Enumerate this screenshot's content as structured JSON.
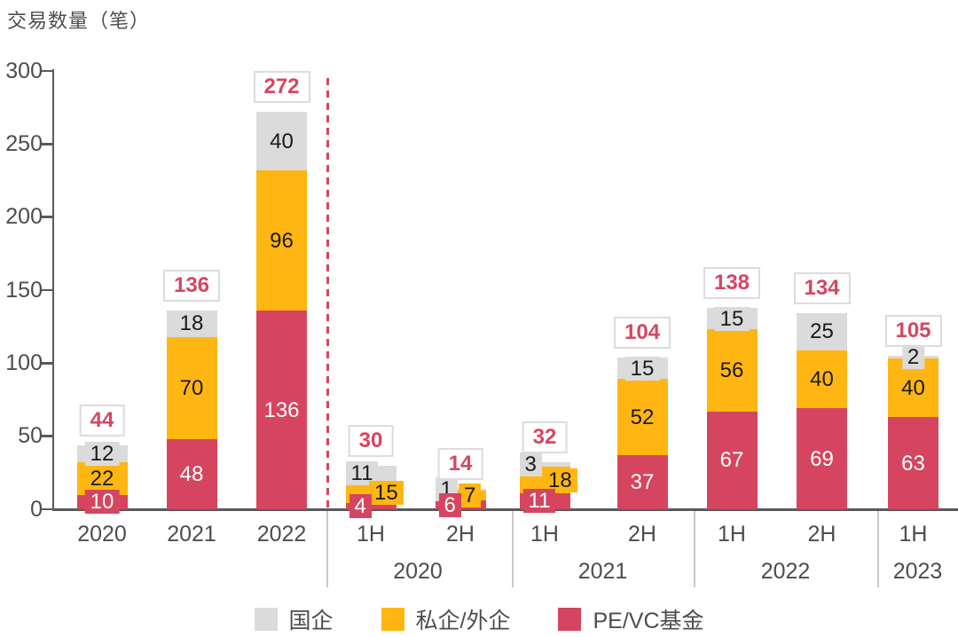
{
  "chart_data": {
    "type": "bar",
    "stacked": true,
    "title": "交易数量（笔）",
    "ylim": [
      0,
      300
    ],
    "yticks": [
      0,
      50,
      100,
      150,
      200,
      250,
      300
    ],
    "grid": false,
    "legend_position": "bottom",
    "categories": [
      "2020",
      "2021",
      "2022",
      "1H",
      "2H",
      "1H",
      "2H",
      "1H",
      "2H",
      "1H"
    ],
    "series": [
      {
        "name": "国企",
        "color": "#dbdbdb",
        "text_color": "#1a1a1a",
        "values": [
          12,
          18,
          40,
          11,
          1,
          3,
          15,
          15,
          25,
          2
        ]
      },
      {
        "name": "私企/外企",
        "color": "#ffb612",
        "text_color": "#1a1a1a",
        "values": [
          22,
          70,
          96,
          15,
          7,
          18,
          52,
          56,
          40,
          40
        ]
      },
      {
        "name": "PE/VC基金",
        "color": "#d6455f",
        "text_color": "#ffffff",
        "values": [
          10,
          48,
          136,
          4,
          6,
          11,
          37,
          67,
          69,
          63
        ]
      }
    ],
    "totals": [
      44,
      136,
      272,
      30,
      14,
      32,
      104,
      138,
      134,
      105
    ],
    "total_label_color": "#d6455f",
    "annual_section_bars": [
      0,
      1,
      2
    ],
    "half_year_groups": [
      {
        "label": "2020",
        "bar_indices": [
          3,
          4
        ]
      },
      {
        "label": "2021",
        "bar_indices": [
          5,
          6
        ]
      },
      {
        "label": "2022",
        "bar_indices": [
          7,
          8
        ]
      },
      {
        "label": "2023",
        "bar_indices": [
          9
        ]
      }
    ],
    "divider_between_annual_and_half": true,
    "divider_color": "#d6455f",
    "axis_color": "#58595b"
  }
}
